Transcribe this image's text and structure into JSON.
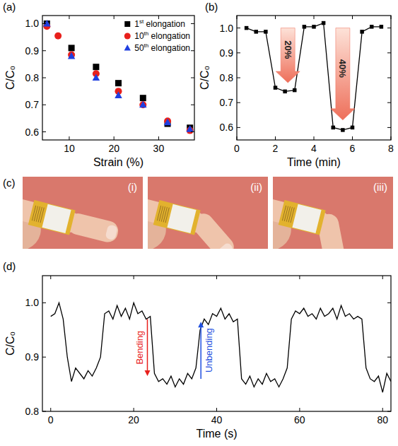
{
  "chart_data": [
    {
      "panel_label": "(a)",
      "type": "scatter",
      "x_label": "Strain (%)",
      "y_label": "C/C₀",
      "xlim": [
        4,
        38
      ],
      "xticks": [
        10,
        20,
        30
      ],
      "ylim": [
        0.57,
        1.03
      ],
      "yticks": [
        0.6,
        0.7,
        0.8,
        0.9,
        {
          "value": 1,
          "label": "1.0"
        }
      ],
      "grid": false,
      "legend": "top-right",
      "series": [
        {
          "name": "1st elongation",
          "color": "#000000",
          "marker": "square",
          "x": [
            5,
            10.5,
            16,
            21,
            26.5,
            32,
            37
          ],
          "values": [
            1.0,
            0.91,
            0.84,
            0.78,
            0.725,
            0.63,
            0.615
          ]
        },
        {
          "name": "10th elongation",
          "color": "#e8201c",
          "marker": "circle",
          "x": [
            5,
            7.5,
            10.5,
            16,
            21,
            26.5,
            32,
            37
          ],
          "values": [
            0.99,
            0.955,
            0.885,
            0.815,
            0.75,
            0.7,
            0.64,
            0.605
          ]
        },
        {
          "name": "50th elongation",
          "color": "#1f3fe0",
          "marker": "triangle",
          "x": [
            5,
            10.5,
            16,
            21,
            26.5,
            32,
            37
          ],
          "values": [
            1.0,
            0.88,
            0.8,
            0.735,
            0.7,
            0.635,
            0.61
          ]
        }
      ]
    },
    {
      "panel_label": "(b)",
      "type": "line",
      "x_label": "Time (min)",
      "y_label": "C/C₀",
      "xlim": [
        0,
        8
      ],
      "xticks": [
        0,
        2,
        4,
        6,
        8
      ],
      "ylim": [
        0.55,
        1.05
      ],
      "yticks": [
        0.6,
        0.7,
        0.8,
        0.9,
        {
          "value": 1,
          "label": "1.0"
        }
      ],
      "grid": false,
      "series": [
        {
          "color": "#000000",
          "marker": "square",
          "line_style": "solid",
          "x": [
            0.5,
            1,
            1.5,
            2,
            2.5,
            3,
            3.5,
            4,
            4.5,
            5,
            5.5,
            6,
            6.5,
            7,
            7.5
          ],
          "values": [
            1.0,
            0.985,
            0.985,
            0.76,
            0.745,
            0.75,
            1.005,
            1.005,
            1.02,
            0.6,
            0.59,
            0.6,
            0.985,
            1.005,
            1.005
          ]
        }
      ],
      "annotations": [
        {
          "type": "block_arrow",
          "text": "20%",
          "color": "#ee6f5a",
          "x": 2.65,
          "y_range": [
            1.0,
            0.78
          ]
        },
        {
          "type": "block_arrow",
          "text": "40%",
          "color": "#ee6f5a",
          "x": 5.5,
          "y_range": [
            1.0,
            0.63
          ]
        }
      ]
    },
    {
      "panel_label": "(d)",
      "type": "line",
      "x_label": "Time (s)",
      "y_label": "C/C₀",
      "xlim": [
        -2,
        82
      ],
      "xticks": [
        0,
        20,
        40,
        60,
        80
      ],
      "ylim": [
        0.8,
        1.05
      ],
      "yticks": [
        0.8,
        0.9,
        {
          "value": 1,
          "label": "1.0"
        }
      ],
      "grid": false,
      "series": [
        {
          "color": "#000000",
          "line_style": "solid",
          "x": [
            0,
            1,
            2,
            3,
            4,
            5,
            6,
            7,
            8,
            9,
            10,
            11,
            12,
            13,
            14,
            15,
            16,
            17,
            18,
            19,
            20,
            21,
            22,
            23,
            24,
            25,
            26,
            27,
            28,
            29,
            30,
            31,
            32,
            33,
            34,
            35,
            36,
            37,
            38,
            39,
            40,
            41,
            42,
            43,
            44,
            45,
            46,
            47,
            48,
            49,
            50,
            51,
            52,
            53,
            54,
            55,
            56,
            57,
            58,
            59,
            60,
            61,
            62,
            63,
            64,
            65,
            66,
            67,
            68,
            69,
            70,
            71,
            72,
            73,
            74,
            75,
            76,
            77,
            78,
            79,
            80,
            81,
            82
          ],
          "values": [
            0.975,
            0.98,
            1.0,
            0.97,
            0.9,
            0.855,
            0.88,
            0.87,
            0.86,
            0.875,
            0.865,
            0.88,
            0.9,
            0.98,
            0.985,
            0.97,
            0.995,
            0.975,
            0.99,
            0.97,
            1.0,
            0.98,
            0.985,
            0.97,
            0.975,
            0.87,
            0.855,
            0.86,
            0.85,
            0.865,
            0.845,
            0.86,
            0.85,
            0.87,
            0.86,
            0.88,
            0.95,
            0.97,
            0.96,
            0.98,
            0.975,
            0.99,
            0.97,
            0.98,
            0.965,
            0.97,
            0.86,
            0.85,
            0.865,
            0.845,
            0.86,
            0.85,
            0.87,
            0.855,
            0.86,
            0.845,
            0.86,
            0.88,
            0.97,
            0.985,
            0.98,
            0.99,
            0.975,
            0.98,
            0.97,
            0.99,
            0.975,
            0.98,
            0.99,
            0.97,
            0.995,
            0.975,
            0.98,
            0.97,
            0.975,
            0.97,
            0.88,
            0.86,
            0.855,
            0.865,
            0.835,
            0.87,
            0.855
          ]
        }
      ],
      "annotations": [
        {
          "type": "arrow",
          "text": "Bending",
          "color": "#e8201c",
          "x": 23.3,
          "y_range": [
            0.97,
            0.865
          ]
        },
        {
          "type": "arrow",
          "text": "Unbending",
          "color": "#1f4fe0",
          "x": 36.2,
          "y_range": [
            0.86,
            0.965
          ]
        }
      ]
    }
  ],
  "photos": {
    "panel_label": "(c)",
    "labels": [
      "(i)",
      "(ii)",
      "(iii)"
    ]
  }
}
